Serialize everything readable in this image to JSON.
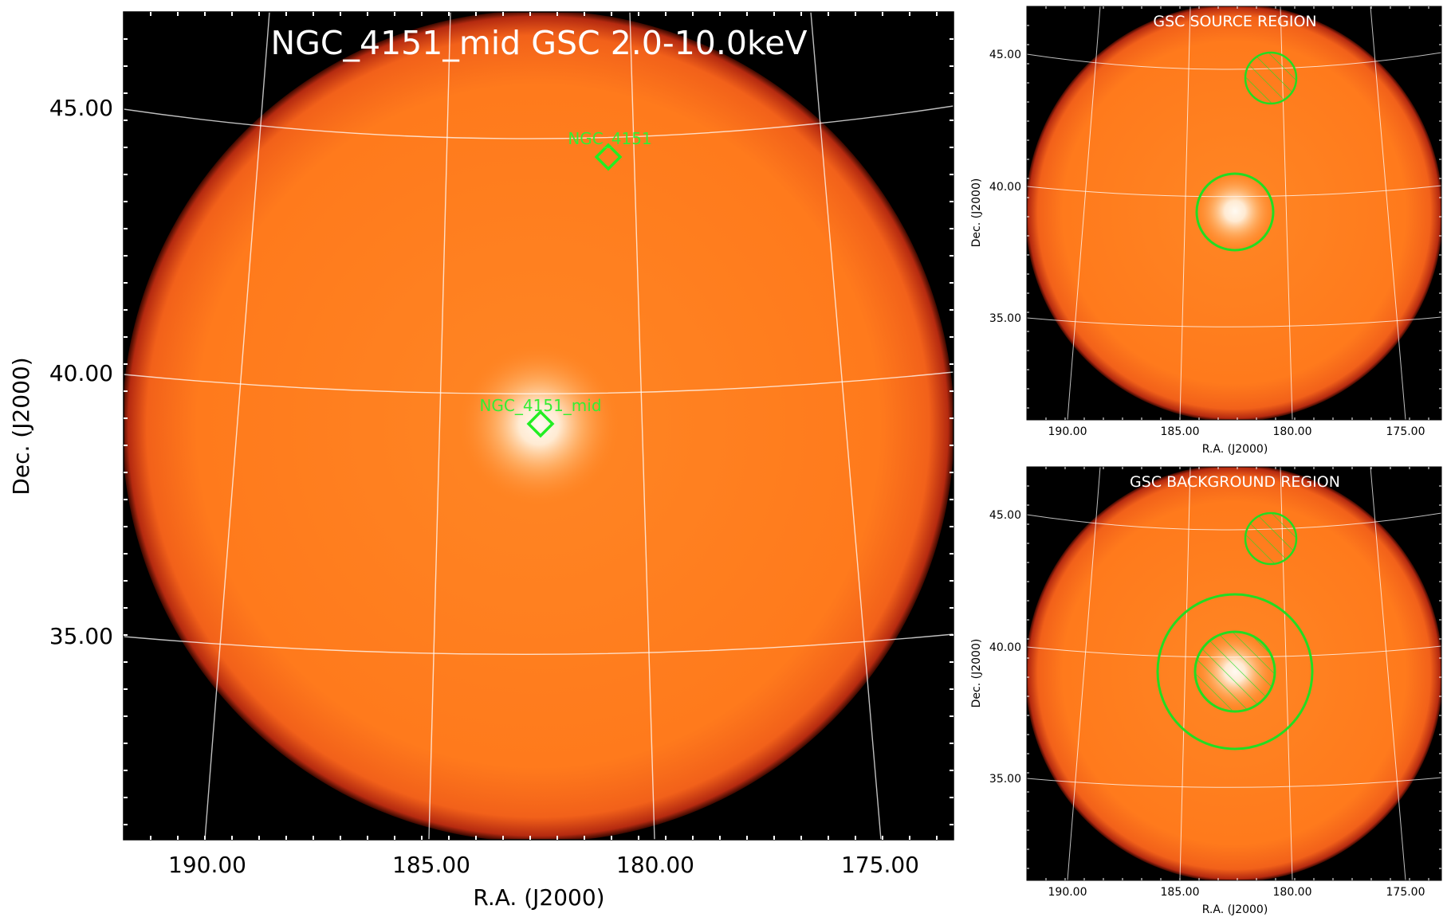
{
  "main_panel": {
    "title": "NGC_4151_mid GSC 2.0-10.0keV",
    "xlabel": "R.A. (J2000)",
    "ylabel": "Dec. (J2000)",
    "x_ticks": [
      "190.00",
      "185.00",
      "180.00",
      "175.00"
    ],
    "y_ticks": [
      "45.00",
      "40.00",
      "35.00"
    ],
    "markers": [
      {
        "label": "NGC_4151",
        "ra": 181.1,
        "dec": 44.0
      },
      {
        "label": "NGC_4151_mid",
        "ra": 182.6,
        "dec": 39.0
      }
    ]
  },
  "source_panel": {
    "title": "GSC SOURCE REGION",
    "xlabel": "R.A. (J2000)",
    "ylabel": "Dec. (J2000)",
    "x_ticks": [
      "190.00",
      "185.00",
      "180.00",
      "175.00"
    ],
    "y_ticks": [
      "45.00",
      "40.00",
      "35.00"
    ]
  },
  "background_panel": {
    "title": "GSC BACKGROUND REGION",
    "xlabel": "R.A. (J2000)",
    "ylabel": "Dec. (J2000)",
    "x_ticks": [
      "190.00",
      "185.00",
      "180.00",
      "175.00"
    ],
    "y_ticks": [
      "45.00",
      "40.00",
      "35.00"
    ]
  },
  "colors": {
    "background": "#000000",
    "field_edge": "#e8471a",
    "field_body": "#ff7f20",
    "source_glow": "#fff7ec",
    "region": "#22dd22",
    "grid": "#ffffff"
  }
}
